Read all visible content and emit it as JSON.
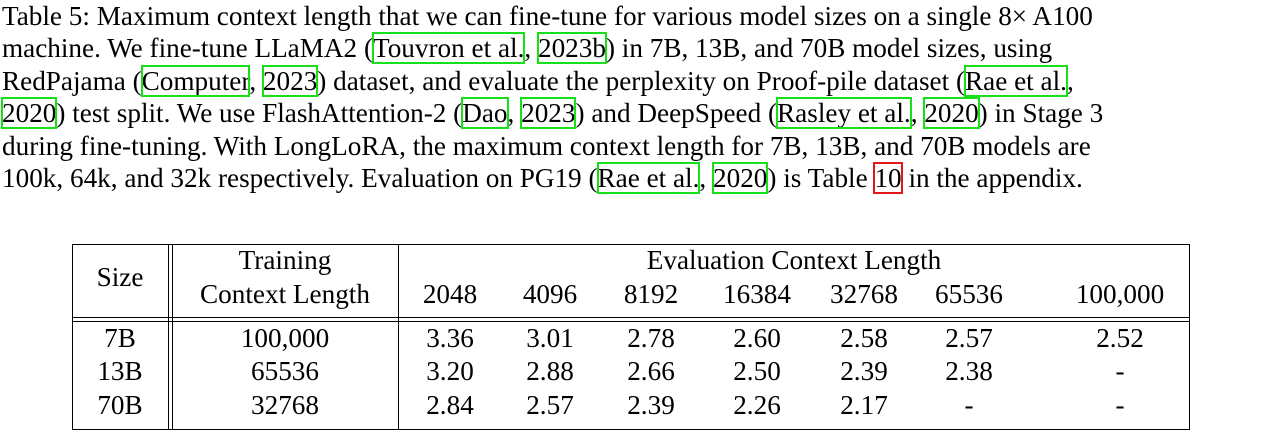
{
  "caption": {
    "l1": "Table 5: Maximum context length that we can fine-tune for various model sizes on a single 8× A100",
    "l2a": "machine. We fine-tune LLaMA2 (",
    "l2_cite1": "Touvron et al.",
    "l2_sep": ", ",
    "l2_cite2": "2023b",
    "l2b": ") in 7B, 13B, and 70B model sizes, using",
    "l3a": "RedPajama (",
    "l3_cite1": "Computer",
    "l3_sep": ", ",
    "l3_cite2": "2023",
    "l3b": ") dataset, and evaluate the perplexity on Proof-pile dataset (",
    "l3_cite3": "Rae et al.",
    "l3c": ",",
    "l4_cite1": "2020",
    "l4a": ") test split. We use FlashAttention-2 (",
    "l4_cite2": "Dao",
    "l4_sep": ", ",
    "l4_cite3": "2023",
    "l4b": ") and DeepSpeed (",
    "l4_cite4": "Rasley et al.",
    "l4_sep2": ", ",
    "l4_cite5": "2020",
    "l4c": ") in Stage 3",
    "l5": "during fine-tuning. With LongLoRA, the maximum context length for 7B, 13B, and 70B models are",
    "l6a": "100k, 64k, and 32k respectively. Evaluation on PG19 (",
    "l6_cite1": "Rae et al.",
    "l6_sep": ", ",
    "l6_cite2": "2020",
    "l6b": ") is Table ",
    "l6_ref": "10",
    "l6c": " in the appendix."
  },
  "table": {
    "header_size": "Size",
    "header_training_1": "Training",
    "header_training_2": "Context Length",
    "header_eval": "Evaluation Context Length",
    "eval_lengths": [
      "2048",
      "4096",
      "8192",
      "16384",
      "32768",
      "65536",
      "100,000"
    ],
    "rows": [
      {
        "size": "7B",
        "training": "100,000",
        "values": [
          "3.36",
          "3.01",
          "2.78",
          "2.60",
          "2.58",
          "2.57",
          "2.52"
        ]
      },
      {
        "size": "13B",
        "training": "65536",
        "values": [
          "3.20",
          "2.88",
          "2.66",
          "2.50",
          "2.39",
          "2.38",
          "-"
        ]
      },
      {
        "size": "70B",
        "training": "32768",
        "values": [
          "2.84",
          "2.57",
          "2.39",
          "2.26",
          "2.17",
          "-",
          "-"
        ]
      }
    ]
  }
}
